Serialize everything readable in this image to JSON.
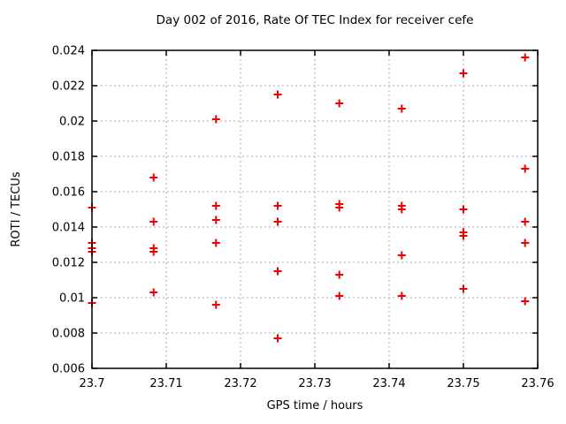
{
  "title": "Day 002 of 2016, Rate Of TEC Index for receiver cefe",
  "chart_data": {
    "type": "scatter",
    "title": "Day 002 of 2016, Rate Of TEC Index for receiver cefe",
    "xlabel": "GPS time / hours",
    "ylabel": "ROTI / TECUs",
    "xlim": [
      23.7,
      23.76
    ],
    "ylim": [
      0.006,
      0.024
    ],
    "grid": "dashed-major-both-axes",
    "legend": "none",
    "marker": {
      "shape": "plus",
      "color": "#ee0000",
      "size": 9
    },
    "border_color": "#000000",
    "grid_color": "#aaaaaa",
    "background_color": "#ffffff",
    "xticks": {
      "values": [
        23.7,
        23.71,
        23.72,
        23.73,
        23.74,
        23.75,
        23.76
      ],
      "labels": [
        "23.7",
        "23.71",
        "23.72",
        "23.73",
        "23.74",
        "23.75",
        "23.76"
      ]
    },
    "yticks": {
      "values": [
        0.006,
        0.008,
        0.01,
        0.012,
        0.014,
        0.016,
        0.018,
        0.02,
        0.022,
        0.024
      ],
      "labels": [
        "0.006",
        "0.008",
        "0.01",
        "0.012",
        "0.014",
        "0.016",
        "0.018",
        "0.02",
        "0.022",
        "0.024"
      ]
    },
    "series": [
      {
        "name": "ROTI",
        "points": [
          [
            23.7,
            0.0151
          ],
          [
            23.7,
            0.0131
          ],
          [
            23.7,
            0.0128
          ],
          [
            23.7,
            0.0126
          ],
          [
            23.7,
            0.0097
          ],
          [
            23.7083,
            0.0168
          ],
          [
            23.7083,
            0.0143
          ],
          [
            23.7083,
            0.0128
          ],
          [
            23.7083,
            0.0126
          ],
          [
            23.7083,
            0.0103
          ],
          [
            23.7167,
            0.0201
          ],
          [
            23.7167,
            0.0152
          ],
          [
            23.7167,
            0.0144
          ],
          [
            23.7167,
            0.0131
          ],
          [
            23.7167,
            0.0096
          ],
          [
            23.725,
            0.0215
          ],
          [
            23.725,
            0.0152
          ],
          [
            23.725,
            0.0143
          ],
          [
            23.725,
            0.0115
          ],
          [
            23.725,
            0.0077
          ],
          [
            23.7333,
            0.021
          ],
          [
            23.7333,
            0.0153
          ],
          [
            23.7333,
            0.0151
          ],
          [
            23.7333,
            0.0113
          ],
          [
            23.7333,
            0.0101
          ],
          [
            23.7417,
            0.0207
          ],
          [
            23.7417,
            0.0152
          ],
          [
            23.7417,
            0.015
          ],
          [
            23.7417,
            0.0124
          ],
          [
            23.7417,
            0.0101
          ],
          [
            23.75,
            0.0227
          ],
          [
            23.75,
            0.015
          ],
          [
            23.75,
            0.0137
          ],
          [
            23.75,
            0.0135
          ],
          [
            23.75,
            0.0105
          ],
          [
            23.7583,
            0.0236
          ],
          [
            23.7583,
            0.0173
          ],
          [
            23.7583,
            0.0143
          ],
          [
            23.7583,
            0.0131
          ],
          [
            23.7583,
            0.0098
          ]
        ]
      }
    ]
  }
}
